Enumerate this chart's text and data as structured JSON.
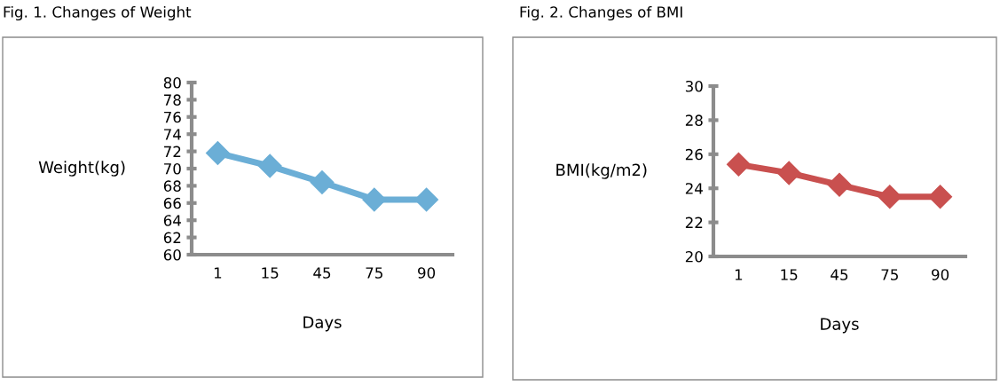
{
  "chart_data": [
    {
      "type": "line",
      "title": "Fig. 1. Changes of Weight",
      "xlabel": "Days",
      "ylabel": "Weight(kg)",
      "categories": [
        "1",
        "15",
        "45",
        "75",
        "90"
      ],
      "series": [
        {
          "color": "#6baed6",
          "values": [
            71.8,
            70.3,
            68.4,
            66.4,
            66.4
          ]
        }
      ],
      "ylim": [
        60,
        80
      ],
      "yticks": [
        60,
        62,
        64,
        66,
        68,
        70,
        72,
        74,
        76,
        78,
        80
      ],
      "grid": false,
      "legend": false,
      "marker": "diamond",
      "line_style": "solid"
    },
    {
      "type": "line",
      "title": "Fig. 2. Changes of BMI",
      "xlabel": "Days",
      "ylabel": "BMI(kg/m2)",
      "categories": [
        "1",
        "15",
        "45",
        "75",
        "90"
      ],
      "series": [
        {
          "color": "#c9504f",
          "values": [
            25.4,
            24.9,
            24.2,
            23.5,
            23.5
          ]
        }
      ],
      "ylim": [
        20,
        30
      ],
      "yticks": [
        20,
        22,
        24,
        26,
        28,
        30
      ],
      "grid": false,
      "legend": false,
      "marker": "diamond",
      "line_style": "solid"
    }
  ]
}
